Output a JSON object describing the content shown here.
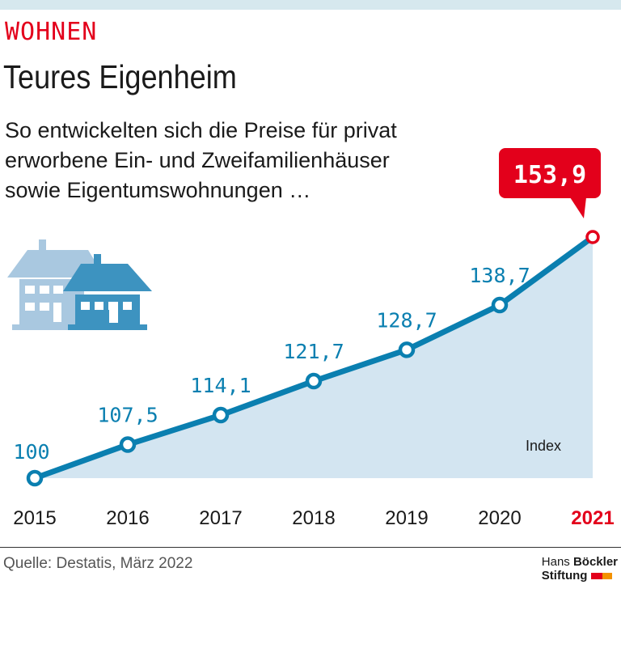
{
  "header": {
    "kicker": "WOHNEN",
    "title": "Teures Eigenheim",
    "subtitle_lines": [
      "So entwickelten sich die Preise für privat",
      "erworbene Ein- und Zweifamilienhäuser",
      "sowie Eigentumswohnungen …"
    ]
  },
  "chart_data": {
    "type": "area",
    "categories": [
      "2015",
      "2016",
      "2017",
      "2018",
      "2019",
      "2020",
      "2021"
    ],
    "values": [
      100,
      107.5,
      114.1,
      121.7,
      128.7,
      138.7,
      153.9
    ],
    "data_labels": [
      "100",
      "107,5",
      "114,1",
      "121,7",
      "128,7",
      "138,7",
      "153,9"
    ],
    "unit_label": "Index",
    "highlight_index": 6,
    "ylim": [
      100,
      153.9
    ],
    "grid": false,
    "colors": {
      "line": "#0a7fb0",
      "fill": "#d3e5f1",
      "highlight": "#e3001b",
      "label": "#0a7fb0"
    }
  },
  "footer": {
    "source": "Quelle: Destatis, März 2022",
    "logo_line1_a": "Hans ",
    "logo_line1_b": "Böckler",
    "logo_line2": "Stiftung"
  },
  "icons": {
    "illustration": "houses-icon"
  }
}
